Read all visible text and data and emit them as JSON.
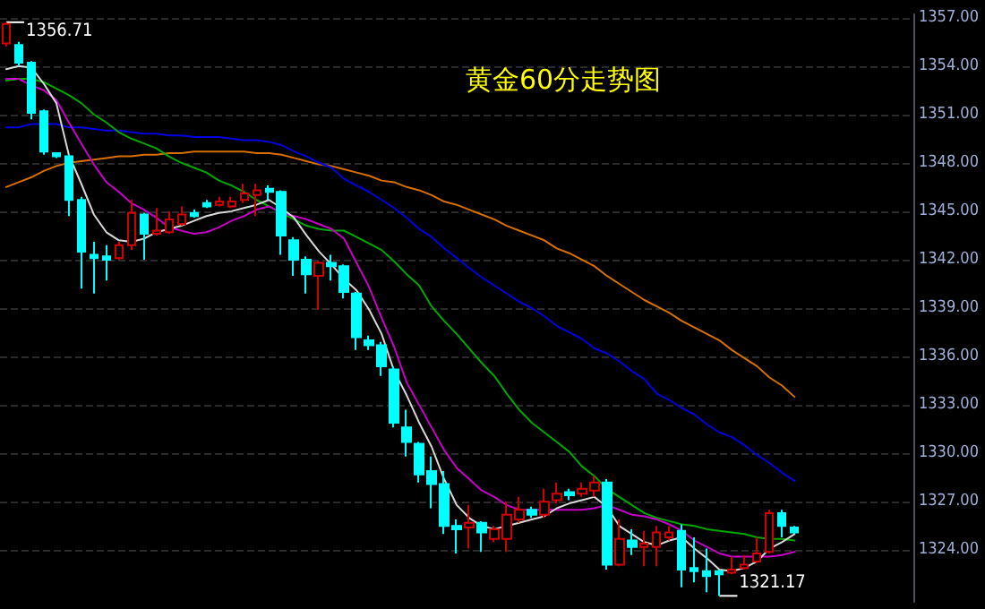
{
  "chart_data": {
    "type": "candlestick",
    "title": "黄金60分走势图",
    "categories": [
      null,
      null,
      null,
      null,
      null,
      null,
      null,
      null,
      null,
      null,
      null,
      null,
      null,
      null,
      null,
      null,
      null,
      null,
      null,
      null,
      null,
      null,
      null,
      null,
      null,
      null,
      null,
      null,
      null,
      null,
      null,
      null,
      null,
      null,
      null,
      null,
      null,
      null,
      null,
      null,
      null,
      null,
      null,
      null,
      null,
      null,
      null,
      null,
      null,
      null,
      null,
      null,
      null,
      null,
      null,
      null,
      null,
      null,
      null,
      null,
      null,
      null,
      null,
      null,
      null,
      null,
      null,
      null,
      null,
      null,
      null,
      null,
      null
    ],
    "ohlc": [
      [
        1355.4,
        1356.71,
        1355.2,
        1356.6
      ],
      [
        1355.3,
        1355.5,
        1354.0,
        1354.2
      ],
      [
        1354.2,
        1354.3,
        1350.7,
        1351.1
      ],
      [
        1351.2,
        1351.3,
        1348.5,
        1348.7
      ],
      [
        1348.6,
        1348.6,
        1348.3,
        1348.4
      ],
      [
        1348.4,
        1348.5,
        1344.7,
        1345.7
      ],
      [
        1345.7,
        1345.9,
        1340.2,
        1342.5
      ],
      [
        1342.3,
        1343.1,
        1339.9,
        1342.1
      ],
      [
        1342.2,
        1342.9,
        1340.7,
        1342.0
      ],
      [
        1342.1,
        1343.1,
        1342.0,
        1342.9
      ],
      [
        1342.9,
        1345.7,
        1342.6,
        1344.9
      ],
      [
        1344.8,
        1344.9,
        1342.0,
        1343.6
      ],
      [
        1343.6,
        1345.2,
        1343.5,
        1343.8
      ],
      [
        1343.7,
        1345.0,
        1343.6,
        1344.5
      ],
      [
        1344.2,
        1345.3,
        1344.1,
        1344.8
      ],
      [
        1344.9,
        1345.1,
        1344.6,
        1344.7
      ],
      [
        1345.5,
        1345.7,
        1345.2,
        1345.3
      ],
      [
        1345.4,
        1345.9,
        1345.3,
        1345.6
      ],
      [
        1345.3,
        1345.9,
        1345.2,
        1345.6
      ],
      [
        1345.7,
        1346.7,
        1345.5,
        1346.1
      ],
      [
        1346.0,
        1346.7,
        1344.7,
        1346.3
      ],
      [
        1346.4,
        1346.6,
        1345.7,
        1346.2
      ],
      [
        1346.2,
        1346.3,
        1342.3,
        1343.5
      ],
      [
        1343.2,
        1343.4,
        1341.0,
        1342.0
      ],
      [
        1342.0,
        1342.2,
        1339.9,
        1341.1
      ],
      [
        1341.0,
        1341.9,
        1338.9,
        1341.8
      ],
      [
        1341.8,
        1342.3,
        1340.7,
        1341.6
      ],
      [
        1341.6,
        1341.7,
        1339.6,
        1340.0
      ],
      [
        1339.9,
        1340.0,
        1336.4,
        1337.2
      ],
      [
        1337.0,
        1337.3,
        1336.4,
        1336.7
      ],
      [
        1336.7,
        1336.9,
        1334.8,
        1335.4
      ],
      [
        1335.2,
        1335.4,
        1331.6,
        1331.9
      ],
      [
        1331.6,
        1332.7,
        1329.8,
        1330.7
      ],
      [
        1330.6,
        1330.7,
        1328.2,
        1328.7
      ],
      [
        1328.9,
        1329.8,
        1326.6,
        1328.1
      ],
      [
        1328.1,
        1328.9,
        1325.0,
        1325.5
      ],
      [
        1325.5,
        1325.9,
        1323.8,
        1325.3
      ],
      [
        1325.4,
        1326.8,
        1324.1,
        1325.7
      ],
      [
        1325.7,
        1325.8,
        1323.9,
        1325.1
      ],
      [
        1324.7,
        1325.5,
        1324.5,
        1325.3
      ],
      [
        1324.7,
        1327.0,
        1323.9,
        1326.2
      ],
      [
        1325.9,
        1327.3,
        1325.7,
        1326.5
      ],
      [
        1326.5,
        1326.7,
        1326.0,
        1326.2
      ],
      [
        1326.2,
        1327.8,
        1326.0,
        1327.0
      ],
      [
        1327.1,
        1328.2,
        1326.9,
        1327.5
      ],
      [
        1327.6,
        1327.8,
        1327.1,
        1327.4
      ],
      [
        1327.5,
        1328.2,
        1327.3,
        1327.8
      ],
      [
        1327.7,
        1328.6,
        1327.3,
        1328.2
      ],
      [
        1328.2,
        1328.4,
        1322.8,
        1323.1
      ],
      [
        1323.1,
        1325.9,
        1323.0,
        1324.7
      ],
      [
        1324.6,
        1325.3,
        1323.7,
        1324.2
      ],
      [
        1324.2,
        1325.2,
        1323.0,
        1324.4
      ],
      [
        1324.2,
        1325.5,
        1323.0,
        1325.1
      ],
      [
        1324.8,
        1325.5,
        1324.6,
        1325.1
      ],
      [
        1325.2,
        1325.6,
        1321.7,
        1322.8
      ],
      [
        1322.9,
        1324.8,
        1322.0,
        1322.7
      ],
      [
        1322.7,
        1324.1,
        1321.4,
        1322.4
      ],
      [
        1322.7,
        1322.8,
        1321.17,
        1322.5
      ],
      [
        1322.6,
        1323.6,
        1322.5,
        1322.8
      ],
      [
        1322.9,
        1323.7,
        1322.8,
        1323.1
      ],
      [
        1323.3,
        1324.8,
        1323.2,
        1323.8
      ],
      [
        1323.9,
        1326.5,
        1323.8,
        1326.3
      ],
      [
        1326.3,
        1326.5,
        1324.8,
        1325.5
      ],
      [
        1325.4,
        1325.5,
        1325.0,
        1325.1
      ],
      null,
      null,
      null,
      null,
      null,
      null,
      null,
      null,
      null
    ],
    "colors": [
      "#d00000",
      "#00ffff",
      "#00ffff",
      "#00ffff",
      "#00ffff",
      "#00ffff",
      "#00ffff",
      "#00ffff",
      "#00ffff",
      "#d00000",
      "#d00000",
      "#00ffff",
      "#d00000",
      "#d00000",
      "#d00000",
      "#00ffff",
      "#00ffff",
      "#d00000",
      "#d00000",
      "#d00000",
      "#d00000",
      "#00ffff",
      "#00ffff",
      "#00ffff",
      "#00ffff",
      "#d00000",
      "#00ffff",
      "#00ffff",
      "#00ffff",
      "#00ffff",
      "#00ffff",
      "#00ffff",
      "#00ffff",
      "#00ffff",
      "#00ffff",
      "#00ffff",
      "#00ffff",
      "#d00000",
      "#00ffff",
      "#d00000",
      "#d00000",
      "#d00000",
      "#00ffff",
      "#d00000",
      "#d00000",
      "#00ffff",
      "#d00000",
      "#d00000",
      "#00ffff",
      "#d00000",
      "#00ffff",
      "#d00000",
      "#d00000",
      "#d00000",
      "#00ffff",
      "#00ffff",
      "#00ffff",
      "#00ffff",
      "#d00000",
      "#d00000",
      "#d00000",
      "#d00000",
      "#00ffff",
      "#00ffff",
      null,
      null,
      null,
      null,
      null,
      null,
      null,
      null,
      null
    ],
    "series": [
      {
        "type": "line",
        "color": "#d8d8d8",
        "values": [
          1353.8,
          1354.0,
          1353.9,
          1352.9,
          1351.7,
          1348.5,
          1346.7,
          1344.8,
          1343.7,
          1343.2,
          1343.1,
          1343.3,
          1343.7,
          1343.9,
          1344.1,
          1344.4,
          1344.7,
          1344.9,
          1345.0,
          1345.2,
          1345.4,
          1345.7,
          1345.2,
          1344.6,
          1343.5,
          1342.5,
          1341.7,
          1340.8,
          1340.1,
          1338.9,
          1337.4,
          1335.1,
          1333.6,
          1331.9,
          1330.4,
          1328.4,
          1326.8,
          1326.0,
          1325.5,
          1325.3,
          1325.5,
          1325.7,
          1325.9,
          1326.1,
          1326.6,
          1326.9,
          1327.1,
          1327.3,
          1326.7,
          1325.5,
          1325.0,
          1324.5,
          1324.3,
          1324.6,
          1324.8,
          1324.1,
          1323.5,
          1322.8,
          1322.7,
          1322.9,
          1323.3,
          1324.1,
          1324.5,
          1325.0,
          null,
          null,
          null,
          null,
          null,
          null,
          null,
          null,
          null
        ]
      },
      {
        "type": "line",
        "color": "#c800c8",
        "values": [
          1353.2,
          1353.2,
          1352.8,
          1352.5,
          1351.9,
          1350.5,
          1349.2,
          1347.9,
          1346.8,
          1346.2,
          1345.5,
          1345.1,
          1344.6,
          1344.0,
          1343.8,
          1343.6,
          1343.7,
          1344.0,
          1344.4,
          1344.7,
          1345.1,
          1345.3,
          1344.9,
          1344.7,
          1344.5,
          1344.2,
          1343.9,
          1343.3,
          1341.8,
          1340.3,
          1338.4,
          1336.6,
          1334.4,
          1333.0,
          1331.6,
          1330.2,
          1329.1,
          1328.4,
          1327.7,
          1327.3,
          1326.8,
          1326.5,
          1326.5,
          1326.5,
          1326.5,
          1326.5,
          1326.5,
          1326.6,
          1326.8,
          1326.5,
          1326.2,
          1326.1,
          1325.9,
          1325.6,
          1325.2,
          1324.6,
          1324.2,
          1323.8,
          1323.6,
          1323.6,
          1323.6,
          1323.6,
          1323.7,
          1323.9,
          null,
          null,
          null,
          null,
          null,
          null,
          null,
          null,
          null
        ]
      },
      {
        "type": "line",
        "color": "#00a800",
        "values": [
          1353.1,
          1353.2,
          1353.2,
          1353.0,
          1352.6,
          1352.2,
          1351.7,
          1351.0,
          1350.5,
          1349.9,
          1349.5,
          1349.2,
          1348.9,
          1348.4,
          1348.0,
          1347.7,
          1347.4,
          1346.9,
          1346.6,
          1346.2,
          1345.7,
          1345.3,
          1344.9,
          1344.5,
          1344.1,
          1343.9,
          1343.8,
          1343.8,
          1343.4,
          1343.0,
          1342.6,
          1341.9,
          1341.1,
          1340.4,
          1339.1,
          1338.2,
          1337.4,
          1336.5,
          1335.6,
          1334.8,
          1333.7,
          1332.7,
          1331.9,
          1331.3,
          1330.7,
          1330.1,
          1329.2,
          1328.6,
          1327.8,
          1327.3,
          1326.8,
          1326.3,
          1326.0,
          1325.8,
          1325.6,
          1325.5,
          1325.3,
          1325.2,
          1325.1,
          1325.0,
          1324.8,
          1324.7,
          1324.7,
          1324.6,
          null,
          null,
          null,
          null,
          null,
          null,
          null,
          null,
          null
        ]
      },
      {
        "type": "line",
        "color": "#0000e0",
        "values": [
          1350.2,
          1350.2,
          1350.4,
          1350.4,
          1350.4,
          1350.2,
          1350.2,
          1350.1,
          1350.0,
          1350.0,
          1349.9,
          1349.8,
          1349.8,
          1349.7,
          1349.7,
          1349.6,
          1349.6,
          1349.6,
          1349.5,
          1349.4,
          1349.4,
          1349.3,
          1349.1,
          1348.7,
          1348.4,
          1348.0,
          1347.7,
          1347.0,
          1346.6,
          1346.2,
          1345.7,
          1345.2,
          1344.6,
          1343.9,
          1343.4,
          1342.7,
          1342.1,
          1341.5,
          1340.9,
          1340.4,
          1339.9,
          1339.4,
          1339.0,
          1338.5,
          1337.9,
          1337.5,
          1337.1,
          1336.5,
          1336.2,
          1335.7,
          1335.1,
          1334.6,
          1333.7,
          1333.3,
          1332.8,
          1332.4,
          1331.8,
          1331.3,
          1331.0,
          1330.5,
          1329.9,
          1329.4,
          1328.8,
          1328.3,
          null,
          null,
          null,
          null,
          null,
          null,
          null,
          null,
          null
        ]
      },
      {
        "type": "line",
        "color": "#d87000",
        "values": [
          1346.5,
          1346.8,
          1347.1,
          1347.5,
          1347.8,
          1348.0,
          1348.1,
          1348.2,
          1348.3,
          1348.4,
          1348.4,
          1348.5,
          1348.5,
          1348.6,
          1348.6,
          1348.7,
          1348.7,
          1348.7,
          1348.7,
          1348.7,
          1348.6,
          1348.6,
          1348.5,
          1348.3,
          1348.1,
          1347.9,
          1347.8,
          1347.6,
          1347.4,
          1347.2,
          1346.9,
          1346.8,
          1346.5,
          1346.3,
          1346.0,
          1345.6,
          1345.4,
          1345.1,
          1344.8,
          1344.5,
          1344.1,
          1343.8,
          1343.5,
          1343.2,
          1342.7,
          1342.4,
          1342.0,
          1341.6,
          1341.0,
          1340.5,
          1340.0,
          1339.5,
          1339.1,
          1338.7,
          1338.2,
          1337.8,
          1337.4,
          1337.0,
          1336.4,
          1335.9,
          1335.4,
          1334.7,
          1334.2,
          1333.5,
          null,
          null,
          null,
          null,
          null,
          null,
          null,
          null,
          null
        ]
      }
    ],
    "ylim": [
      1320.8,
      1357.2
    ],
    "yticks": [
      {
        "value": 1324,
        "label": "1324.00"
      },
      {
        "value": 1327,
        "label": "1327.00"
      },
      {
        "value": 1330,
        "label": "1330.00"
      },
      {
        "value": 1333,
        "label": "1333.00"
      },
      {
        "value": 1336,
        "label": "1336.00"
      },
      {
        "value": 1339,
        "label": "1339.00"
      },
      {
        "value": 1342,
        "label": "1342.00"
      },
      {
        "value": 1345,
        "label": "1345.00"
      },
      {
        "value": 1348,
        "label": "1348.00"
      },
      {
        "value": 1351,
        "label": "1351.00"
      },
      {
        "value": 1354,
        "label": "1354.00"
      },
      {
        "value": 1357,
        "label": "1357.00"
      }
    ],
    "tick_labels": "y",
    "grid": "y",
    "line_style": "solid",
    "annotations": [
      "1356.71",
      "1321.17"
    ]
  }
}
